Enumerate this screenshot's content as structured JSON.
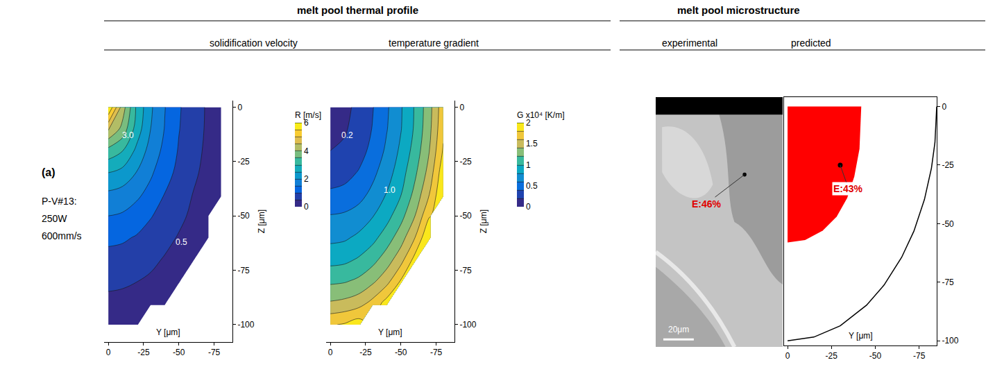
{
  "header": {
    "left": {
      "title": "melt pool thermal profile"
    },
    "right": {
      "title": "melt pool microstructure"
    }
  },
  "row_label": {
    "letter": "(a)",
    "lines": [
      "P-V#13:",
      "250W",
      "600mm/s"
    ]
  },
  "chart_data": [
    {
      "type": "contour",
      "title": "solidification velocity",
      "xlabel": "Y [μm]",
      "ylabel": "Z [μm]",
      "x": [
        0,
        -10,
        -20,
        -30,
        -40,
        -50,
        -60,
        -70,
        -80
      ],
      "y": [
        0,
        -10,
        -20,
        -30,
        -40,
        -50,
        -60,
        -70,
        -80,
        -90,
        -100
      ],
      "z": [
        [
          6.0,
          4.27,
          2.92,
          2.08,
          1.52,
          1.05,
          0.74,
          0.45,
          0.22
        ],
        [
          4.58,
          3.84,
          2.78,
          2.0,
          1.48,
          1.02,
          0.72,
          0.44,
          0.21
        ],
        [
          3.33,
          3.02,
          2.39,
          1.8,
          1.37,
          0.96,
          0.67,
          0.41,
          0.18
        ],
        [
          2.51,
          2.35,
          1.99,
          1.58,
          1.2,
          0.87,
          0.6,
          0.36,
          0.13
        ],
        [
          1.91,
          1.81,
          1.61,
          1.34,
          0.99,
          0.76,
          0.49,
          0.28,
          0.05
        ],
        [
          1.5,
          1.44,
          1.27,
          1.03,
          0.83,
          0.62,
          0.4,
          0.2,
          null
        ],
        [
          1.12,
          1.07,
          0.96,
          0.82,
          0.65,
          0.46,
          0.28,
          0.08,
          null
        ],
        [
          0.83,
          0.81,
          0.73,
          0.62,
          0.46,
          0.32,
          0.16,
          null,
          null
        ],
        [
          0.6,
          0.57,
          0.51,
          0.42,
          0.32,
          0.18,
          null,
          null,
          null
        ],
        [
          0.39,
          0.37,
          0.32,
          0.25,
          0.15,
          null,
          null,
          null,
          null
        ],
        [
          0.2,
          0.18,
          0.14,
          null,
          null,
          null,
          null,
          null,
          null
        ]
      ],
      "xlim": [
        3,
        -88
      ],
      "ylim": [
        -108,
        3
      ],
      "xticks": [
        0,
        -25,
        -50,
        -75
      ],
      "yticks": [
        0,
        -25,
        -50,
        -75,
        -100
      ],
      "colorbar": {
        "title": "R [m/s]",
        "range": [
          0,
          6
        ],
        "ticks": [
          0,
          2,
          4,
          6
        ]
      },
      "contour_levels": {
        "start": 0.5,
        "end": 6,
        "size": 0.5
      },
      "annotations": [
        {
          "text": "3.0",
          "x": -14,
          "y": -13
        },
        {
          "text": "0.5",
          "x": -52,
          "y": -62
        }
      ]
    },
    {
      "type": "contour",
      "title": "temperature gradient",
      "xlabel": "Y [μm]",
      "ylabel": "Z [μm]",
      "x": [
        0,
        -10,
        -20,
        -30,
        -40,
        -50,
        -60,
        -70,
        -80
      ],
      "y": [
        0,
        -10,
        -20,
        -30,
        -40,
        -50,
        -60,
        -70,
        -80,
        -90,
        -100
      ],
      "z": [
        [
          0.1,
          0.16,
          0.24,
          0.39,
          0.57,
          0.78,
          1.02,
          1.32,
          1.73
        ],
        [
          0.15,
          0.18,
          0.27,
          0.41,
          0.59,
          0.79,
          1.03,
          1.34,
          1.76
        ],
        [
          0.2,
          0.23,
          0.33,
          0.45,
          0.64,
          0.84,
          1.08,
          1.39,
          1.82
        ],
        [
          0.31,
          0.34,
          0.41,
          0.55,
          0.71,
          0.91,
          1.16,
          1.47,
          1.93
        ],
        [
          0.43,
          0.45,
          0.53,
          0.65,
          0.81,
          0.99,
          1.26,
          1.59,
          2.0
        ],
        [
          0.61,
          0.63,
          0.68,
          0.79,
          0.93,
          1.13,
          1.4,
          1.78,
          null
        ],
        [
          0.75,
          0.77,
          0.84,
          0.94,
          1.1,
          1.31,
          1.6,
          2.0,
          null
        ],
        [
          0.93,
          0.95,
          1.02,
          1.13,
          1.3,
          1.52,
          1.87,
          null,
          null
        ],
        [
          1.16,
          1.18,
          1.24,
          1.36,
          1.53,
          1.82,
          null,
          null,
          null
        ],
        [
          1.42,
          1.45,
          1.51,
          1.66,
          1.88,
          null,
          null,
          null,
          null
        ],
        [
          1.78,
          1.82,
          1.91,
          null,
          null,
          null,
          null,
          null,
          null
        ]
      ],
      "xlim": [
        3,
        -88
      ],
      "ylim": [
        -108,
        3
      ],
      "xticks": [
        0,
        -25,
        -50,
        -75
      ],
      "yticks": [
        0,
        -25,
        -50,
        -75,
        -100
      ],
      "colorbar": {
        "title": "G x10⁴ [K/m]",
        "range": [
          0,
          2
        ],
        "ticks": [
          0,
          0.5,
          1,
          1.5,
          2
        ]
      },
      "contour_levels": {
        "start": 0.2,
        "end": 2,
        "size": 0.2
      },
      "annotations": [
        {
          "text": "0.2",
          "x": -12,
          "y": -13
        },
        {
          "text": "1.0",
          "x": -42,
          "y": -38
        }
      ]
    },
    {
      "type": "image",
      "title": "experimental",
      "label": "E:46%",
      "scale_bar": "20μm"
    },
    {
      "type": "region",
      "title": "predicted",
      "xlabel": "Y [μm]",
      "xlim": [
        2,
        -85
      ],
      "ylim": [
        -102,
        4
      ],
      "xticks": [
        0,
        -25,
        -50,
        -75
      ],
      "yticks": [
        0,
        -25,
        -50,
        -75,
        -100
      ],
      "boundary": {
        "x": [
          0,
          -15,
          -30,
          -45,
          -55,
          -65,
          -72,
          -78,
          -82,
          -84,
          -85
        ],
        "y": [
          -100,
          -98.4,
          -93.6,
          -84.8,
          -76.2,
          -64.4,
          -53.2,
          -39.7,
          -26.3,
          -15.3,
          0
        ]
      },
      "region": {
        "color": "#ff0000",
        "x": [
          0,
          0,
          -10,
          -20,
          -28,
          -34,
          -38,
          -41,
          -42,
          0
        ],
        "y": [
          0,
          -58,
          -57,
          -53,
          -47,
          -39,
          -30,
          -18,
          0,
          0
        ]
      },
      "point": {
        "x": -30,
        "y": -25,
        "label": "E:43%"
      }
    }
  ]
}
